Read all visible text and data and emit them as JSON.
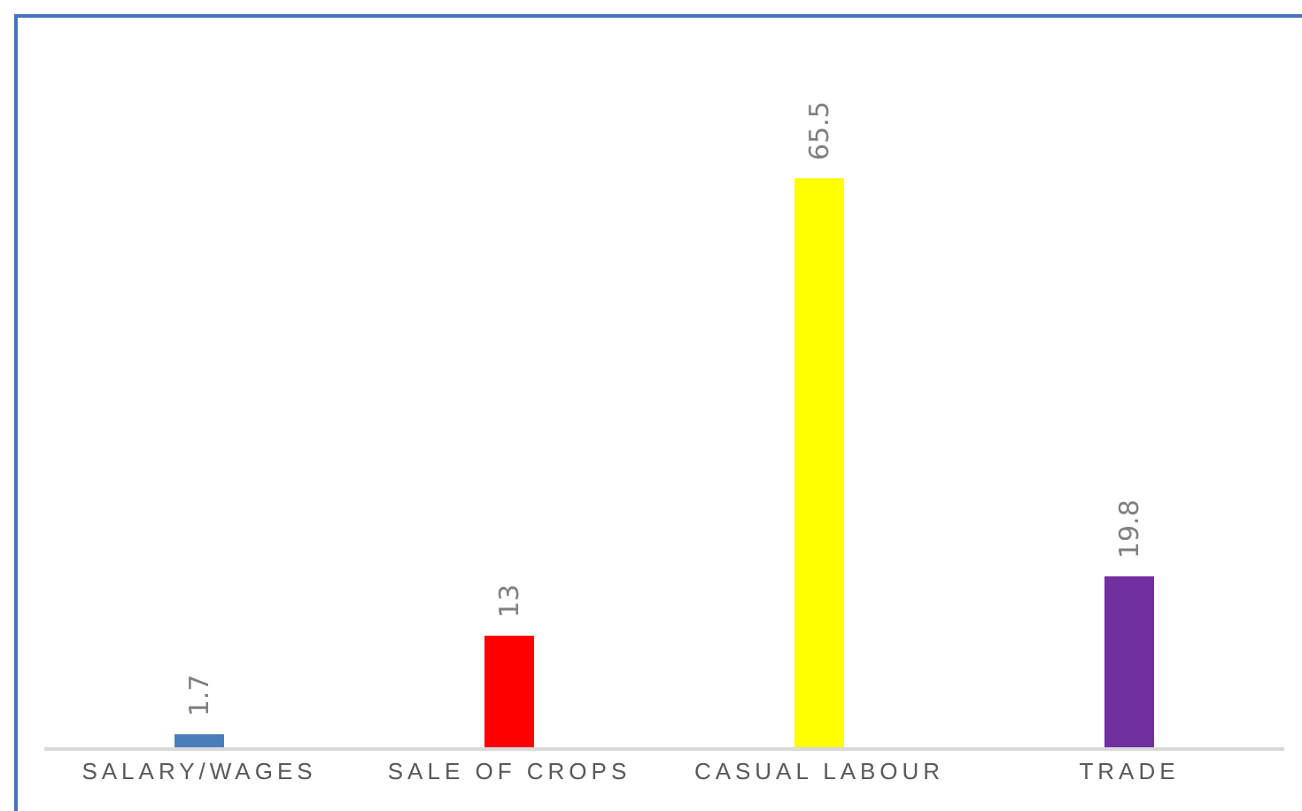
{
  "chart_data": {
    "type": "bar",
    "categories": [
      "SALARY/WAGES",
      "SALE OF CROPS",
      "CASUAL LABOUR",
      "TRADE"
    ],
    "values": [
      1.7,
      13,
      65.5,
      19.8
    ],
    "colors": [
      "#4a7ebb",
      "#ff0000",
      "#ffff00",
      "#7030a0"
    ],
    "data_labels": true
  }
}
